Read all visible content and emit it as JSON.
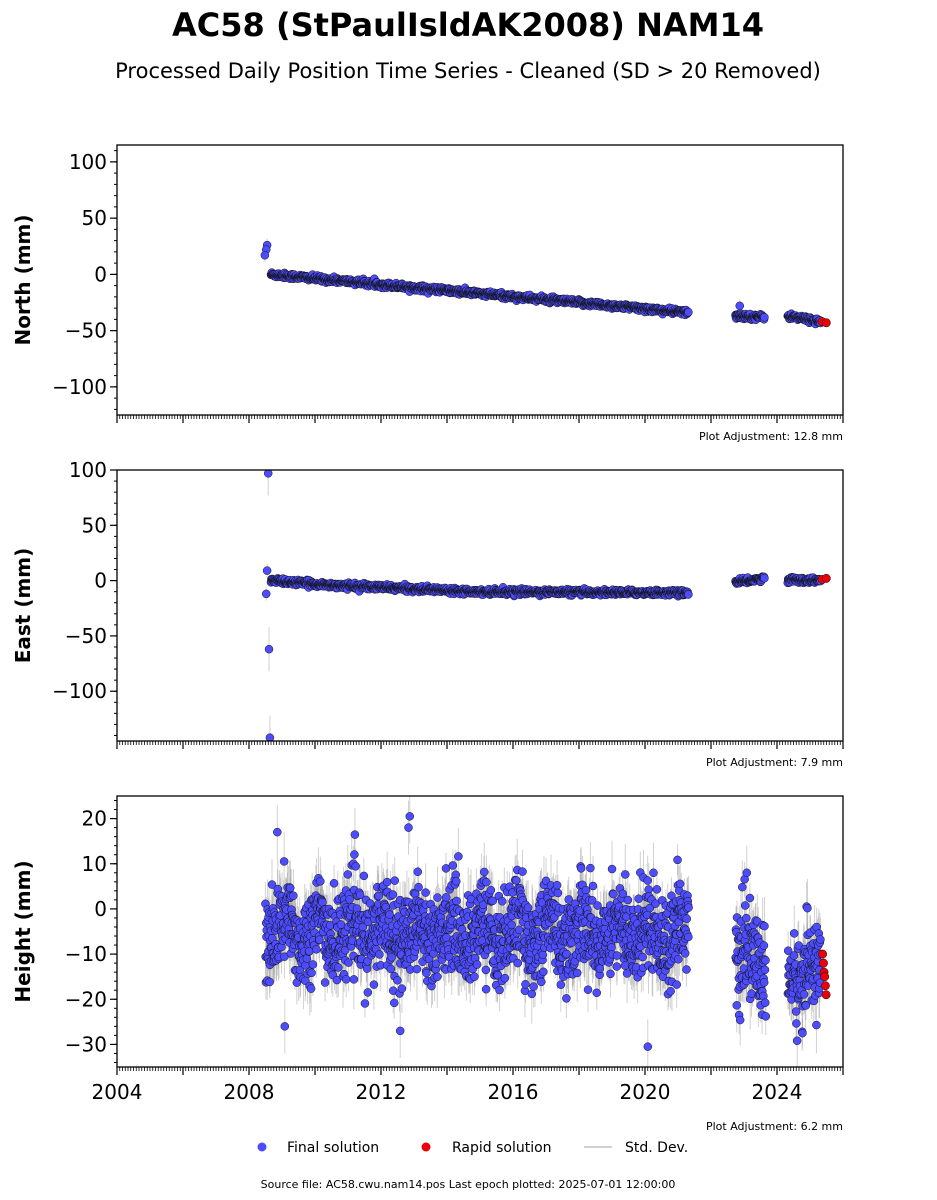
{
  "figure": {
    "title": "AC58 (StPaulIsldAK2008) NAM14",
    "subtitle": "Processed Daily Position Time Series - Cleaned (SD > 20 Removed)",
    "source": "Source file: AC58.cwu.nam14.pos  Last epoch plotted: 2025-07-01 12:00:00"
  },
  "legend": {
    "final": "Final solution",
    "rapid": "Rapid solution",
    "std": "Std. Dev."
  },
  "colors": {
    "final": "#4d4dff",
    "rapid": "#e8000b",
    "std": "#b0b0b0"
  },
  "chart_data": [
    {
      "type": "scatter",
      "ylabel": "North (mm)",
      "ylim": [
        -125,
        115
      ],
      "yticks": [
        100,
        50,
        0,
        -50,
        -100
      ],
      "adjustment": "Plot Adjustment: 12.8 mm",
      "x_axis": {
        "range": [
          "2004-01-01",
          "2026-01-01"
        ],
        "tick_labels_shown": false
      },
      "series": [
        {
          "name": "Final solution",
          "kind": "linear",
          "points": [
            {
              "x": "2008-09-01",
              "y": 0
            },
            {
              "x": "2021-04-15",
              "y": -34
            },
            {
              "x": "2022-10-01",
              "y": -37
            },
            {
              "x": "2023-08-01",
              "y": -38
            },
            {
              "x": "2024-05-01",
              "y": -37
            },
            {
              "x": "2025-04-30",
              "y": -42
            }
          ],
          "jitter": 2
        },
        {
          "name": "Rapid solution",
          "points": [
            {
              "x": "2025-05-15",
              "y": -42
            },
            {
              "x": "2025-06-30",
              "y": -43
            }
          ]
        }
      ],
      "outliers": [
        {
          "x": "2008-07-20",
          "y": 26
        },
        {
          "x": "2008-07-10",
          "y": 22
        },
        {
          "x": "2008-06-25",
          "y": 17
        },
        {
          "x": "2022-11-15",
          "y": -28
        }
      ]
    },
    {
      "type": "scatter",
      "ylabel": "East (mm)",
      "ylim": [
        -145,
        100
      ],
      "yticks": [
        100,
        50,
        0,
        -50,
        -100
      ],
      "adjustment": "Plot Adjustment: 7.9 mm",
      "x_axis": {
        "range": [
          "2004-01-01",
          "2026-01-01"
        ],
        "tick_labels_shown": false
      },
      "series": [
        {
          "name": "Final solution",
          "kind": "linear",
          "points": [
            {
              "x": "2008-09-01",
              "y": 0
            },
            {
              "x": "2010-06-01",
              "y": -4
            },
            {
              "x": "2015-01-01",
              "y": -10
            },
            {
              "x": "2021-04-15",
              "y": -11
            },
            {
              "x": "2022-10-01",
              "y": -2
            },
            {
              "x": "2023-08-01",
              "y": 2
            },
            {
              "x": "2024-05-01",
              "y": 1
            },
            {
              "x": "2025-04-30",
              "y": 0
            }
          ],
          "jitter": 2
        },
        {
          "name": "Rapid solution",
          "points": [
            {
              "x": "2025-05-15",
              "y": 1
            },
            {
              "x": "2025-06-30",
              "y": 2
            }
          ]
        }
      ],
      "outliers": [
        {
          "x": "2008-08-01",
          "y": 97
        },
        {
          "x": "2008-08-10",
          "y": -62
        },
        {
          "x": "2008-08-20",
          "y": -142
        },
        {
          "x": "2008-07-20",
          "y": 9
        },
        {
          "x": "2008-07-10",
          "y": -12
        }
      ]
    },
    {
      "type": "scatter",
      "ylabel": "Height (mm)",
      "ylim": [
        -35,
        25
      ],
      "yticks": [
        20,
        10,
        0,
        -10,
        -20,
        -30
      ],
      "adjustment": "Plot Adjustment: 6.2 mm",
      "x_axis": {
        "range": [
          "2004-01-01",
          "2026-01-01"
        ],
        "tick_labels_shown": true,
        "tick_labels": [
          "2004",
          "2008",
          "2012",
          "2016",
          "2020",
          "2024"
        ]
      },
      "series": [
        {
          "name": "Final solution",
          "kind": "seasonal",
          "mean": -6,
          "amplitude": 5,
          "spread": 5,
          "segments": [
            [
              "2008-07-01",
              "2021-05-01"
            ],
            [
              "2022-10-01",
              "2023-09-01"
            ],
            [
              "2024-05-01",
              "2025-04-30"
            ]
          ],
          "segment_means": [
            -5,
            -12,
            -14
          ]
        },
        {
          "name": "Rapid solution",
          "points": [
            {
              "x": "2025-05-20",
              "y": -10
            },
            {
              "x": "2025-05-30",
              "y": -12
            },
            {
              "x": "2025-06-05",
              "y": -14
            },
            {
              "x": "2025-06-12",
              "y": -15
            },
            {
              "x": "2025-06-20",
              "y": -17
            },
            {
              "x": "2025-06-28",
              "y": -19
            }
          ]
        }
      ],
      "outliers": [
        {
          "x": "2012-11-15",
          "y": 20.5
        },
        {
          "x": "2012-11-01",
          "y": 18
        },
        {
          "x": "2008-11-10",
          "y": 17
        },
        {
          "x": "2009-02-01",
          "y": -26
        },
        {
          "x": "2012-08-01",
          "y": -27
        },
        {
          "x": "2020-02-01",
          "y": -30.5
        },
        {
          "x": "2023-02-01",
          "y": 8
        }
      ]
    }
  ]
}
